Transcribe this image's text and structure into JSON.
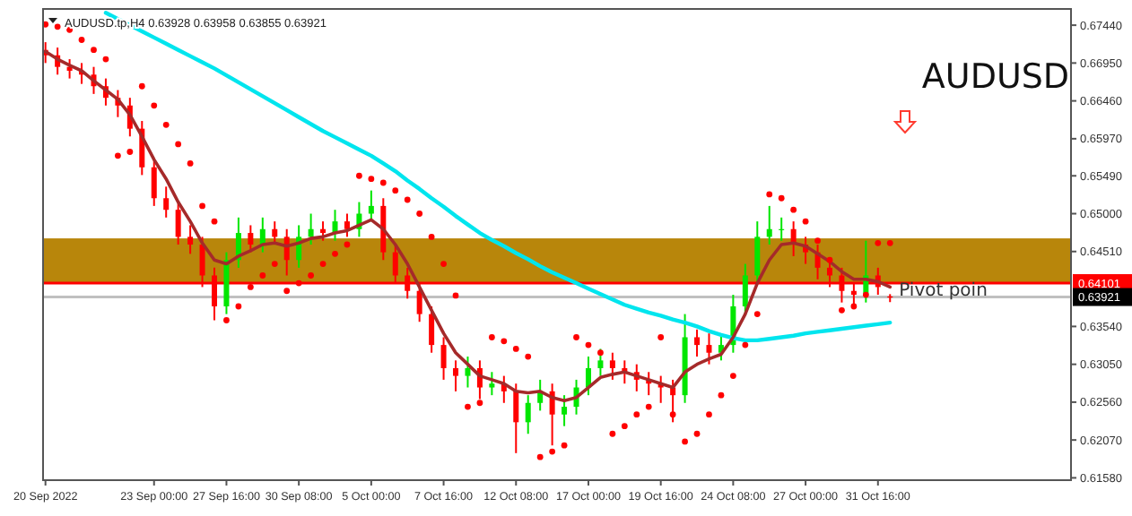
{
  "chart_data": {
    "type": "candlestick",
    "title": "AUDUSD",
    "categories": [
      "20 Sep 2022",
      null,
      null,
      null,
      null,
      null,
      null,
      null,
      null,
      "23 Sep 00:00",
      null,
      null,
      null,
      null,
      null,
      "27 Sep 16:00",
      null,
      null,
      null,
      null,
      null,
      "30 Sep 08:00",
      null,
      null,
      null,
      null,
      null,
      "5 Oct 00:00",
      null,
      null,
      null,
      null,
      null,
      "7 Oct 16:00",
      null,
      null,
      null,
      null,
      null,
      "12 Oct 08:00",
      null,
      null,
      null,
      null,
      null,
      "17 Oct 00:00",
      null,
      null,
      null,
      null,
      null,
      "19 Oct 16:00",
      null,
      null,
      null,
      null,
      null,
      "24 Oct 08:00",
      null,
      null,
      null,
      null,
      null,
      "27 Oct 00:00",
      null,
      null,
      null,
      null,
      null,
      "31 Oct 16:00",
      null
    ],
    "ohlc": [
      [
        0.6712,
        0.6722,
        0.6695,
        0.6705
      ],
      [
        0.6705,
        0.6715,
        0.668,
        0.669
      ],
      [
        0.669,
        0.67,
        0.6675,
        0.6685
      ],
      [
        0.6685,
        0.6695,
        0.6668,
        0.668
      ],
      [
        0.668,
        0.669,
        0.6655,
        0.6665
      ],
      [
        0.6665,
        0.6675,
        0.664,
        0.665
      ],
      [
        0.665,
        0.666,
        0.6625,
        0.664
      ],
      [
        0.664,
        0.665,
        0.66,
        0.661
      ],
      [
        0.661,
        0.662,
        0.655,
        0.656
      ],
      [
        0.656,
        0.657,
        0.651,
        0.652
      ],
      [
        0.652,
        0.6535,
        0.6495,
        0.6505
      ],
      [
        0.6505,
        0.6515,
        0.646,
        0.647
      ],
      [
        0.647,
        0.6485,
        0.6448,
        0.646
      ],
      [
        0.646,
        0.647,
        0.6405,
        0.642
      ],
      [
        0.642,
        0.643,
        0.6362,
        0.638
      ],
      [
        0.638,
        0.645,
        0.637,
        0.644
      ],
      [
        0.644,
        0.6495,
        0.643,
        0.6475
      ],
      [
        0.6475,
        0.6485,
        0.645,
        0.646
      ],
      [
        0.646,
        0.6495,
        0.645,
        0.648
      ],
      [
        0.648,
        0.649,
        0.646,
        0.647
      ],
      [
        0.647,
        0.648,
        0.642,
        0.644
      ],
      [
        0.644,
        0.6485,
        0.643,
        0.647
      ],
      [
        0.647,
        0.65,
        0.646,
        0.648
      ],
      [
        0.648,
        0.649,
        0.6465,
        0.6475
      ],
      [
        0.6475,
        0.6505,
        0.6465,
        0.649
      ],
      [
        0.649,
        0.65,
        0.647,
        0.648
      ],
      [
        0.648,
        0.6515,
        0.647,
        0.65
      ],
      [
        0.65,
        0.653,
        0.649,
        0.651
      ],
      [
        0.651,
        0.652,
        0.644,
        0.645
      ],
      [
        0.645,
        0.646,
        0.641,
        0.642
      ],
      [
        0.642,
        0.643,
        0.639,
        0.64
      ],
      [
        0.64,
        0.641,
        0.636,
        0.637
      ],
      [
        0.637,
        0.638,
        0.632,
        0.633
      ],
      [
        0.633,
        0.634,
        0.6285,
        0.63
      ],
      [
        0.63,
        0.631,
        0.627,
        0.629
      ],
      [
        0.629,
        0.6315,
        0.6275,
        0.63
      ],
      [
        0.63,
        0.631,
        0.626,
        0.6275
      ],
      [
        0.6275,
        0.6295,
        0.6265,
        0.628
      ],
      [
        0.628,
        0.629,
        0.6255,
        0.627
      ],
      [
        0.627,
        0.628,
        0.619,
        0.623
      ],
      [
        0.623,
        0.6265,
        0.6215,
        0.6255
      ],
      [
        0.6255,
        0.6285,
        0.6245,
        0.627
      ],
      [
        0.627,
        0.628,
        0.62,
        0.624
      ],
      [
        0.624,
        0.6265,
        0.6225,
        0.625
      ],
      [
        0.625,
        0.6285,
        0.624,
        0.6275
      ],
      [
        0.6275,
        0.6315,
        0.6265,
        0.63
      ],
      [
        0.63,
        0.6325,
        0.629,
        0.631
      ],
      [
        0.631,
        0.632,
        0.6285,
        0.63
      ],
      [
        0.63,
        0.631,
        0.628,
        0.6295
      ],
      [
        0.6295,
        0.6305,
        0.627,
        0.6285
      ],
      [
        0.6285,
        0.6295,
        0.6265,
        0.628
      ],
      [
        0.628,
        0.629,
        0.6255,
        0.6275
      ],
      [
        0.6275,
        0.6285,
        0.623,
        0.6265
      ],
      [
        0.6265,
        0.637,
        0.6255,
        0.634
      ],
      [
        0.634,
        0.635,
        0.6315,
        0.633
      ],
      [
        0.633,
        0.6345,
        0.6305,
        0.632
      ],
      [
        0.632,
        0.6345,
        0.631,
        0.633
      ],
      [
        0.633,
        0.6395,
        0.632,
        0.638
      ],
      [
        0.638,
        0.6435,
        0.637,
        0.642
      ],
      [
        0.642,
        0.649,
        0.641,
        0.647
      ],
      [
        0.647,
        0.651,
        0.646,
        0.648
      ],
      [
        0.648,
        0.6495,
        0.6465,
        0.648
      ],
      [
        0.648,
        0.649,
        0.6445,
        0.646
      ],
      [
        0.646,
        0.647,
        0.6435,
        0.645
      ],
      [
        0.645,
        0.646,
        0.6415,
        0.643
      ],
      [
        0.643,
        0.644,
        0.6405,
        0.642
      ],
      [
        0.642,
        0.643,
        0.6385,
        0.64
      ],
      [
        0.64,
        0.641,
        0.638,
        0.6395
      ],
      [
        0.6395,
        0.6465,
        0.6385,
        0.642
      ],
      [
        0.642,
        0.643,
        0.6395,
        0.6405
      ],
      [
        0.63928,
        0.63958,
        0.63855,
        0.63921
      ]
    ],
    "colors": [
      "#ff0000",
      "#ff0000",
      "#ff0000",
      "#ff0000",
      "#ff0000",
      "#ff0000",
      "#ff0000",
      "#ff0000",
      "#ff0000",
      "#ff0000",
      "#ff0000",
      "#ff0000",
      "#ff0000",
      "#ff0000",
      "#ff0000",
      "#00e600",
      "#00e600",
      "#ff0000",
      "#00e600",
      "#ff0000",
      "#ff0000",
      "#00e600",
      "#00e600",
      "#ff0000",
      "#00e600",
      "#ff0000",
      "#00e600",
      "#00e600",
      "#ff0000",
      "#ff0000",
      "#ff0000",
      "#ff0000",
      "#ff0000",
      "#ff0000",
      "#ff0000",
      "#00e600",
      "#ff0000",
      "#00e600",
      "#ff0000",
      "#ff0000",
      "#00e600",
      "#00e600",
      "#ff0000",
      "#00e600",
      "#00e600",
      "#00e600",
      "#00e600",
      "#ff0000",
      "#ff0000",
      "#ff0000",
      "#ff0000",
      "#ff0000",
      "#ff0000",
      "#00e600",
      "#ff0000",
      "#ff0000",
      "#00e600",
      "#00e600",
      "#00e600",
      "#00e600",
      "#00e600",
      "#00e600",
      "#ff0000",
      "#ff0000",
      "#ff0000",
      "#ff0000",
      "#ff0000",
      "#ff0000",
      "#00e600",
      "#ff0000",
      "#ff0000"
    ],
    "series": [
      {
        "type": "line",
        "color": "#00e5ee",
        "values": [
          null,
          null,
          null,
          null,
          null,
          0.676,
          0.6752,
          0.6744,
          0.6736,
          0.6728,
          0.672,
          0.6712,
          0.6704,
          0.6696,
          0.6688,
          0.6679,
          0.667,
          0.6661,
          0.6652,
          0.6643,
          0.6634,
          0.6625,
          0.6616,
          0.6607,
          0.6599,
          0.6591,
          0.6583,
          0.6575,
          0.6565,
          0.6555,
          0.6543,
          0.6532,
          0.652,
          0.6509,
          0.6497,
          0.6486,
          0.6475,
          0.6466,
          0.6458,
          0.6449,
          0.6441,
          0.6432,
          0.6424,
          0.6417,
          0.641,
          0.6403,
          0.6396,
          0.6389,
          0.6382,
          0.6377,
          0.6372,
          0.6368,
          0.6363,
          0.6359,
          0.6354,
          0.6348,
          0.6343,
          0.6339,
          0.6336,
          0.6336,
          0.6338,
          0.634,
          0.6342,
          0.6345,
          0.6347,
          0.6349,
          0.6351,
          0.6353,
          0.6355,
          0.6357,
          0.6359
        ]
      },
      {
        "type": "line",
        "color": "#a52a2a",
        "values": [
          0.671,
          0.67,
          0.6692,
          0.6685,
          0.6672,
          0.666,
          0.6648,
          0.6628,
          0.66,
          0.657,
          0.6545,
          0.6515,
          0.649,
          0.6462,
          0.644,
          0.6435,
          0.6445,
          0.6452,
          0.646,
          0.6462,
          0.6458,
          0.6462,
          0.6468,
          0.647,
          0.6475,
          0.6478,
          0.6485,
          0.6492,
          0.648,
          0.646,
          0.6435,
          0.6405,
          0.6375,
          0.6345,
          0.632,
          0.6305,
          0.629,
          0.6285,
          0.628,
          0.627,
          0.6268,
          0.627,
          0.6262,
          0.6258,
          0.6262,
          0.6275,
          0.6288,
          0.6292,
          0.6295,
          0.629,
          0.6285,
          0.628,
          0.6275,
          0.6295,
          0.6305,
          0.6312,
          0.6318,
          0.634,
          0.637,
          0.641,
          0.644,
          0.646,
          0.6462,
          0.6458,
          0.6448,
          0.6438,
          0.6425,
          0.6415,
          0.6415,
          0.6412,
          0.6405
        ]
      },
      {
        "type": "scatter",
        "color": "#ff0000",
        "marker": "circle",
        "values": [
          0.6745,
          0.6742,
          0.6738,
          0.6725,
          0.6712,
          0.67,
          0.6575,
          0.658,
          0.6665,
          0.664,
          0.6615,
          0.659,
          0.6565,
          0.651,
          0.649,
          0.6362,
          0.638,
          0.6405,
          0.642,
          0.6435,
          0.64,
          0.641,
          0.642,
          0.6435,
          0.6448,
          0.646,
          0.6549,
          0.6545,
          0.654,
          0.653,
          0.6518,
          0.65,
          0.647,
          0.6435,
          0.6394,
          0.625,
          0.6255,
          0.634,
          0.6335,
          0.6325,
          0.6315,
          0.6185,
          0.6192,
          0.62,
          0.634,
          0.633,
          0.632,
          0.6215,
          0.6225,
          0.624,
          0.625,
          0.634,
          0.624,
          0.6205,
          0.6215,
          0.624,
          0.6265,
          0.629,
          0.633,
          0.637,
          0.6525,
          0.652,
          0.6505,
          0.649,
          0.6465,
          0.644,
          0.6375,
          0.638,
          0.6395,
          0.6462,
          0.6462
        ]
      }
    ],
    "ylim": [
      0.6155,
      0.6765
    ],
    "yticks": [
      {
        "value": 0.6744,
        "label": "0.67440"
      },
      {
        "value": 0.6695,
        "label": "0.66950"
      },
      {
        "value": 0.6646,
        "label": "0.66460"
      },
      {
        "value": 0.6597,
        "label": "0.65970"
      },
      {
        "value": 0.6549,
        "label": "0.65490"
      },
      {
        "value": 0.65,
        "label": "0.65000"
      },
      {
        "value": 0.6451,
        "label": "0.64510"
      },
      {
        "value": 0.6354,
        "label": "0.63540"
      },
      {
        "value": 0.6305,
        "label": "0.63050"
      },
      {
        "value": 0.6256,
        "label": "0.62560"
      },
      {
        "value": 0.6207,
        "label": "0.62070"
      },
      {
        "value": 0.6158,
        "label": "0.61580"
      }
    ],
    "bands": [
      {
        "axis": "y",
        "from": 0.641,
        "to": 0.6468,
        "color": "#b8860b"
      }
    ],
    "ref_lines": [
      {
        "axis": "y",
        "value": 0.64101,
        "label": "0.64101",
        "color": "#ff0000"
      },
      {
        "axis": "y",
        "value": 0.63921,
        "label": "0.63921",
        "color": "#c0c0c0"
      }
    ],
    "annotations": [
      "AUDUSD.tp,H4  0.63928 0.63958 0.63855 0.63921",
      {
        "text": "Pivot poin",
        "y": 0.63921
      }
    ]
  }
}
